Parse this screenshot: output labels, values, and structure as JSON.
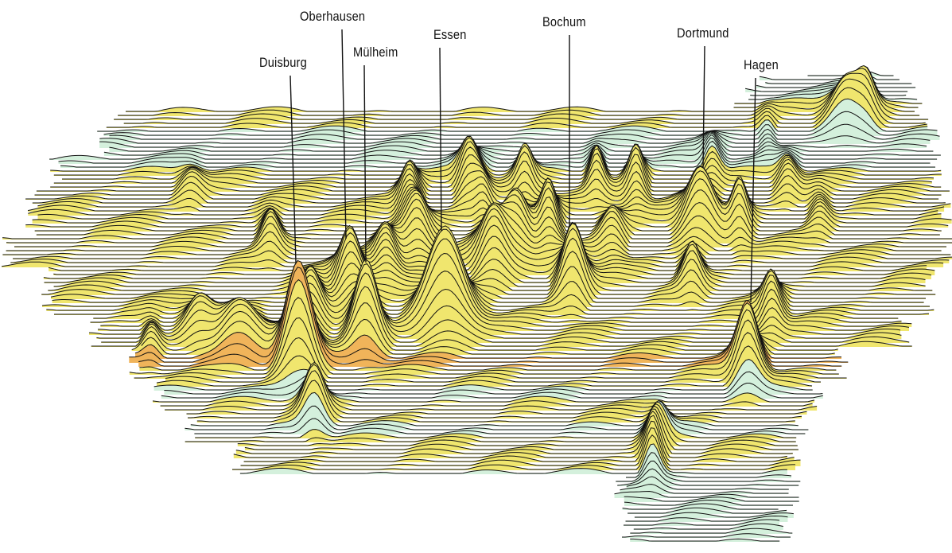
{
  "map": {
    "cities": [
      {
        "id": "duisburg",
        "name": "Duisburg"
      },
      {
        "id": "oberhausen",
        "name": "Oberhausen"
      },
      {
        "id": "muelheim",
        "name": "Mülheim"
      },
      {
        "id": "essen",
        "name": "Essen"
      },
      {
        "id": "bochum",
        "name": "Bochum"
      },
      {
        "id": "dortmund",
        "name": "Dortmund"
      },
      {
        "id": "hagen",
        "name": "Hagen"
      }
    ],
    "colors": {
      "low_fill": "#d4f0dc",
      "mid_fill": "#f0e66e",
      "high_fill": "#f0b45a",
      "contour_line": "#111111",
      "leader_line": "#111111"
    }
  }
}
